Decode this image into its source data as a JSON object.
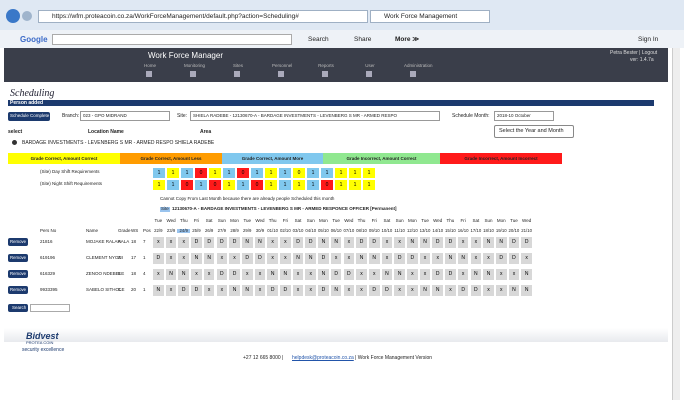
{
  "browser": {
    "url": "https://wfm.proteacoin.co.za/WorkForceManagement/default.php?action=Scheduling#",
    "tab": "Work Force Management",
    "search_engine": "Google",
    "search": "Search",
    "share": "Share",
    "more": "More ≫",
    "sign_in": "Sign In"
  },
  "header": {
    "title": "Work Force Manager",
    "user": "Petra Bester | Logout",
    "version": "ver: 1.4.7a",
    "nav": [
      "Home",
      "Monitoring",
      "Sites",
      "Personnel",
      "Reports",
      "User",
      "Administration"
    ]
  },
  "page": {
    "heading": "Scheduling",
    "status": "Person added",
    "complete_button": "Schedule Complete",
    "branch_label": "Branch:",
    "branch": "023 - GPO MIDRAND",
    "site_label": "Site:",
    "site": "SHIELA RADEBE - 12130670-A - BARDAGE INVESTMENTS - LEVENBERG S MR - ARMED RESPO",
    "month_label": "Schedule Month:",
    "month": "2018-10 October",
    "tooltip": "Select the Year and Month"
  },
  "locations": {
    "columns": [
      "select",
      "Location Name",
      "Area"
    ],
    "row": "BARDAGE INVESTMENTS - LEVENBERG S MR - ARMED RESPO  SHIELA RADEBE"
  },
  "legend": [
    {
      "label": "Grade Correct, Amount Correct",
      "color": "#ffff00"
    },
    {
      "label": "Grade Correct, Amount Less",
      "color": "#ff9c00"
    },
    {
      "label": "Grade Correct, Amount More",
      "color": "#80c8ee"
    },
    {
      "label": "Grade Incorrect, Amount Correct",
      "color": "#90e890"
    },
    {
      "label": "Grade Incorrect, Amount Incorrect",
      "color": "#ff1a1a"
    }
  ],
  "requirements": [
    {
      "label": "(Site) Day Shift Requirements",
      "values": [
        "1",
        "1",
        "1",
        "0",
        "1",
        "1",
        "0",
        "1",
        "1",
        "1",
        "0",
        "1",
        "1",
        "1",
        "1",
        "1"
      ],
      "colors": [
        "#80c8ee",
        "#ffff00",
        "#80c8ee",
        "#ff1a1a",
        "#ffff00",
        "#80c8ee",
        "#ff1a1a",
        "#80c8ee",
        "#ffff00",
        "#80c8ee",
        "#ffff00",
        "#80c8ee",
        "#80c8ee",
        "#ffff00",
        "#ffff00",
        "#ffff00"
      ]
    },
    {
      "label": "(Site) Night Shift Requirements",
      "values": [
        "1",
        "1",
        "0",
        "1",
        "0",
        "1",
        "1",
        "0",
        "1",
        "1",
        "1",
        "1",
        "0",
        "1",
        "1",
        "1"
      ],
      "colors": [
        "#ffff00",
        "#80c8ee",
        "#ff1a1a",
        "#80c8ee",
        "#ff1a1a",
        "#ffff00",
        "#80c8ee",
        "#ff1a1a",
        "#ffff00",
        "#80c8ee",
        "#ffff00",
        "#80c8ee",
        "#ff1a1a",
        "#ffff00",
        "#ffff00",
        "#ffff00"
      ]
    }
  ],
  "notice": "Cannot Copy From Last Month because there are already people Scheduled this month",
  "site_line": {
    "tag": "Site",
    "text": "12130670-A - BARDAGE INVESTMENTS - LEVENBERG S MR - ARMED RESPONCE OFFICER [Permanent]"
  },
  "schedule": {
    "columns": [
      "Pers No",
      "Name",
      "Grade",
      "WS",
      "Pos"
    ],
    "weekdays": [
      "Tue",
      "Wed",
      "Thu",
      "Fri",
      "Sat",
      "Sun",
      "Mon",
      "Tue",
      "Wed",
      "Thu",
      "Fri",
      "Sat",
      "Sun",
      "Mon",
      "Tue",
      "Wed",
      "Thu",
      "Fri",
      "Sat",
      "Sun",
      "Mon",
      "Tue",
      "Wed",
      "Thu",
      "Fri",
      "Sat",
      "Sun",
      "Mon",
      "Tue",
      "Wed"
    ],
    "dates": [
      "22/9",
      "23/9",
      "24/9",
      "25/9",
      "26/9",
      "27/9",
      "28/9",
      "29/9",
      "30/9",
      "01/10",
      "02/10",
      "03/10",
      "04/10",
      "05/10",
      "06/10",
      "07/10",
      "08/10",
      "09/10",
      "10/10",
      "11/10",
      "12/10",
      "13/10",
      "14/10",
      "15/10",
      "16/10",
      "17/10",
      "18/10",
      "19/10",
      "20/10",
      "21/10"
    ],
    "remove": "Remove",
    "search": "Search",
    "rows": [
      {
        "pers_no": "21816",
        "name": "MOJAKE RALARALA",
        "grade": "A",
        "ws": "18",
        "pos": "7",
        "shifts": [
          "x",
          "x",
          "x",
          "D",
          "D",
          "D",
          "D",
          "N",
          "N",
          "x",
          "x",
          "D",
          "D",
          "N",
          "N",
          "x",
          "D",
          "D",
          "x",
          "x",
          "N",
          "N",
          "D",
          "D",
          "x",
          "x",
          "N",
          "N",
          "D",
          "D"
        ]
      },
      {
        "pers_no": "619196",
        "name": "CLEMENT NYONI",
        "grade": "Z",
        "ws": "17",
        "pos": "1",
        "shifts": [
          "D",
          "x",
          "x",
          "N",
          "N",
          "x",
          "x",
          "D",
          "D",
          "x",
          "x",
          "N",
          "N",
          "D",
          "x",
          "x",
          "N",
          "N",
          "x",
          "D",
          "D",
          "x",
          "x",
          "N",
          "N",
          "x",
          "x",
          "D",
          "D",
          "x"
        ]
      },
      {
        "pers_no": "616329",
        "name": "ZENOO NDEBELE",
        "grade": "E",
        "ws": "18",
        "pos": "4",
        "shifts": [
          "x",
          "N",
          "N",
          "x",
          "x",
          "D",
          "D",
          "x",
          "x",
          "N",
          "N",
          "x",
          "x",
          "N",
          "D",
          "D",
          "x",
          "x",
          "N",
          "N",
          "x",
          "x",
          "D",
          "D",
          "x",
          "N",
          "N",
          "x",
          "x",
          "N"
        ]
      },
      {
        "pers_no": "9933395",
        "name": "SABELO SITHOLE",
        "grade": "C",
        "ws": "20",
        "pos": "1",
        "shifts": [
          "N",
          "x",
          "D",
          "D",
          "x",
          "x",
          "N",
          "N",
          "x",
          "D",
          "D",
          "x",
          "x",
          "D",
          "N",
          "x",
          "x",
          "D",
          "D",
          "x",
          "x",
          "N",
          "N",
          "x",
          "D",
          "D",
          "x",
          "x",
          "N",
          "N"
        ]
      }
    ]
  },
  "footer": {
    "brand": "Bidvest",
    "sub": "PROTEA COIN",
    "tagline": "security excellence",
    "phone": "+27 12 665 8000 |",
    "email": "helpdesk@proteacoin.co.za",
    "version": "| Work Force Management Version"
  }
}
